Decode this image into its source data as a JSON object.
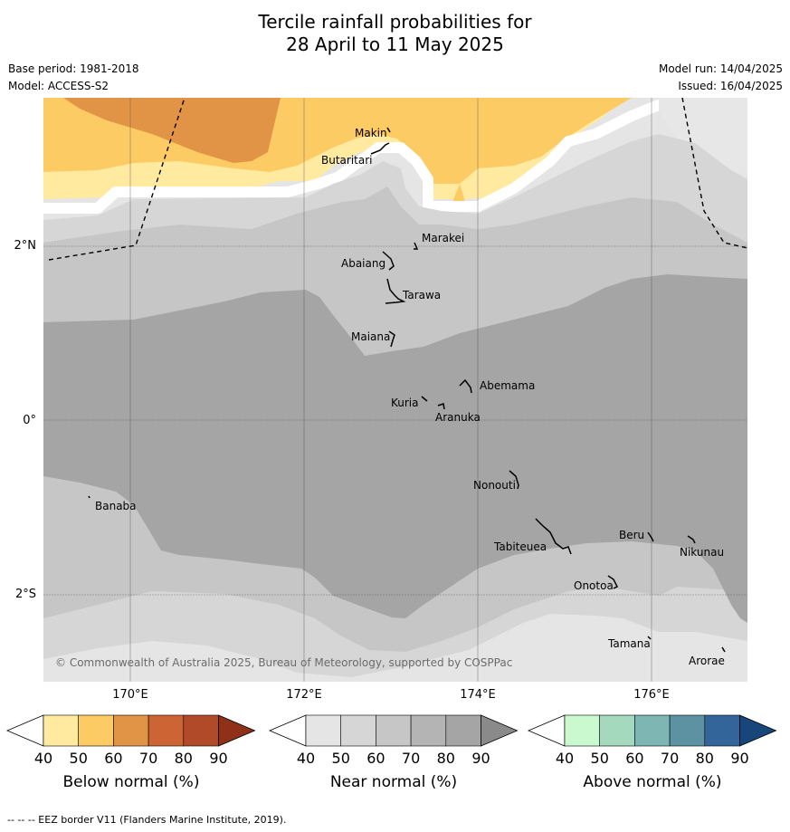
{
  "title": {
    "line1": "Tercile rainfall probabilities for",
    "line2": "28 April to 11 May 2025"
  },
  "meta": {
    "base_period": "Base period: 1981-2018",
    "model": "Model: ACCESS-S2",
    "model_run": "Model run: 14/04/2025",
    "issued": "Issued: 16/04/2025"
  },
  "map": {
    "lat_labels": [
      "2°N",
      "0°",
      "2°S"
    ],
    "lon_labels": [
      "170°E",
      "172°E",
      "174°E",
      "176°E"
    ],
    "islands": [
      "Makin",
      "Butaritari",
      "Marakei",
      "Abaiang",
      "Tarawa",
      "Maiana",
      "Abemama",
      "Kuria",
      "Aranuka",
      "Nonouti",
      "Banaba",
      "Beru",
      "Nikunau",
      "Tabiteuea",
      "Onotoa",
      "Tamana",
      "Arorae"
    ],
    "copyright": "© Commonwealth of Australia 2025, Bureau of Meteorology, supported by COSPPac",
    "colors": {
      "below_40": "#ffffff",
      "below_50": "#ffeaa0",
      "below_60": "#fdcb64",
      "below_70": "#e29446",
      "near_40": "#ffffff",
      "near_50": "#e5e5e5",
      "near_60": "#d6d6d6",
      "near_70": "#c6c6c6",
      "near_80": "#a5a5a5"
    }
  },
  "colorbars": [
    {
      "name": "below",
      "label": "Below normal (%)",
      "ticks": [
        "40",
        "50",
        "60",
        "70",
        "80",
        "90"
      ],
      "colors": [
        "#ffffff",
        "#ffeaa0",
        "#fdcb64",
        "#e29446",
        "#cc6433",
        "#b04a28",
        "#8e3118"
      ]
    },
    {
      "name": "near",
      "label": "Near normal (%)",
      "ticks": [
        "40",
        "50",
        "60",
        "70",
        "80",
        "90"
      ],
      "colors": [
        "#ffffff",
        "#e5e5e5",
        "#d6d6d6",
        "#c6c6c6",
        "#b4b4b4",
        "#a5a5a5",
        "#8a8a8a"
      ]
    },
    {
      "name": "above",
      "label": "Above normal (%)",
      "ticks": [
        "40",
        "50",
        "60",
        "70",
        "80",
        "90"
      ],
      "colors": [
        "#ffffff",
        "#caf9d0",
        "#a4d9bd",
        "#7db6b2",
        "#5c92a2",
        "#33659a",
        "#17477a"
      ]
    }
  ],
  "footer": "--  --  -- EEZ border V11 (Flanders Marine Institute, 2019)."
}
